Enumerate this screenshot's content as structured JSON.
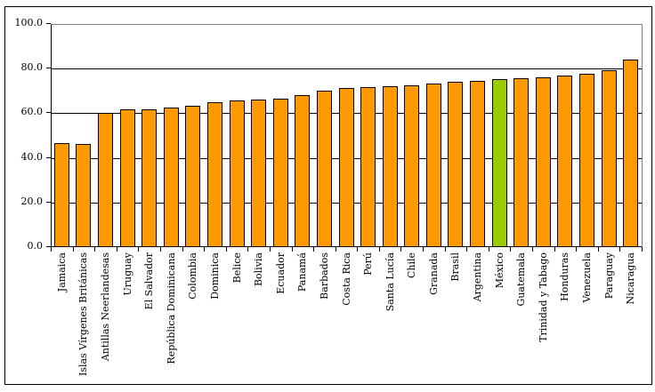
{
  "chart_data": {
    "type": "bar",
    "title": "",
    "xlabel": "",
    "ylabel": "",
    "legend": "none",
    "grid": true,
    "ylim": [
      0,
      100
    ],
    "ytick_labels": [
      "0.0",
      "20.0",
      "40.0",
      "60.0",
      "80.0",
      "100.0"
    ],
    "ytick_values": [
      0,
      20,
      40,
      60,
      80,
      100
    ],
    "categories": [
      "Jamaica",
      "Islas Vírgenes Británicas",
      "Antillas Neerlandesas",
      "Uruguay",
      "El Salvador",
      "República Dominicana",
      "Colombia",
      "Dominica",
      "Belice",
      "Bolivia",
      "Ecuador",
      "Panamá",
      "Barbados",
      "Costa Rica",
      "Perú",
      "Santa Lucía",
      "Chile",
      "Granada",
      "Brasil",
      "Argentina",
      "México",
      "Guatemala",
      "Trinidad y Tabago",
      "Honduras",
      "Venezuela",
      "Paraguay",
      "Nicaragua"
    ],
    "values": [
      46.5,
      46.4,
      60.3,
      61.8,
      61.6,
      62.5,
      63.5,
      64.9,
      65.7,
      66.2,
      66.7,
      68.0,
      70.0,
      71.2,
      71.6,
      72.1,
      72.4,
      73.3,
      74.2,
      74.7,
      75.1,
      75.5,
      75.9,
      76.8,
      77.6,
      79.3,
      84.0
    ],
    "highlighted_category": "México",
    "colors": {
      "bar_fill": "#FF9900",
      "highlight_fill": "#99CC00",
      "bar_border": "#000000",
      "gridline": "#000000",
      "plot_border": "#808080",
      "axis": "#000000",
      "text": "#000000",
      "background": "#FFFFFF"
    }
  }
}
